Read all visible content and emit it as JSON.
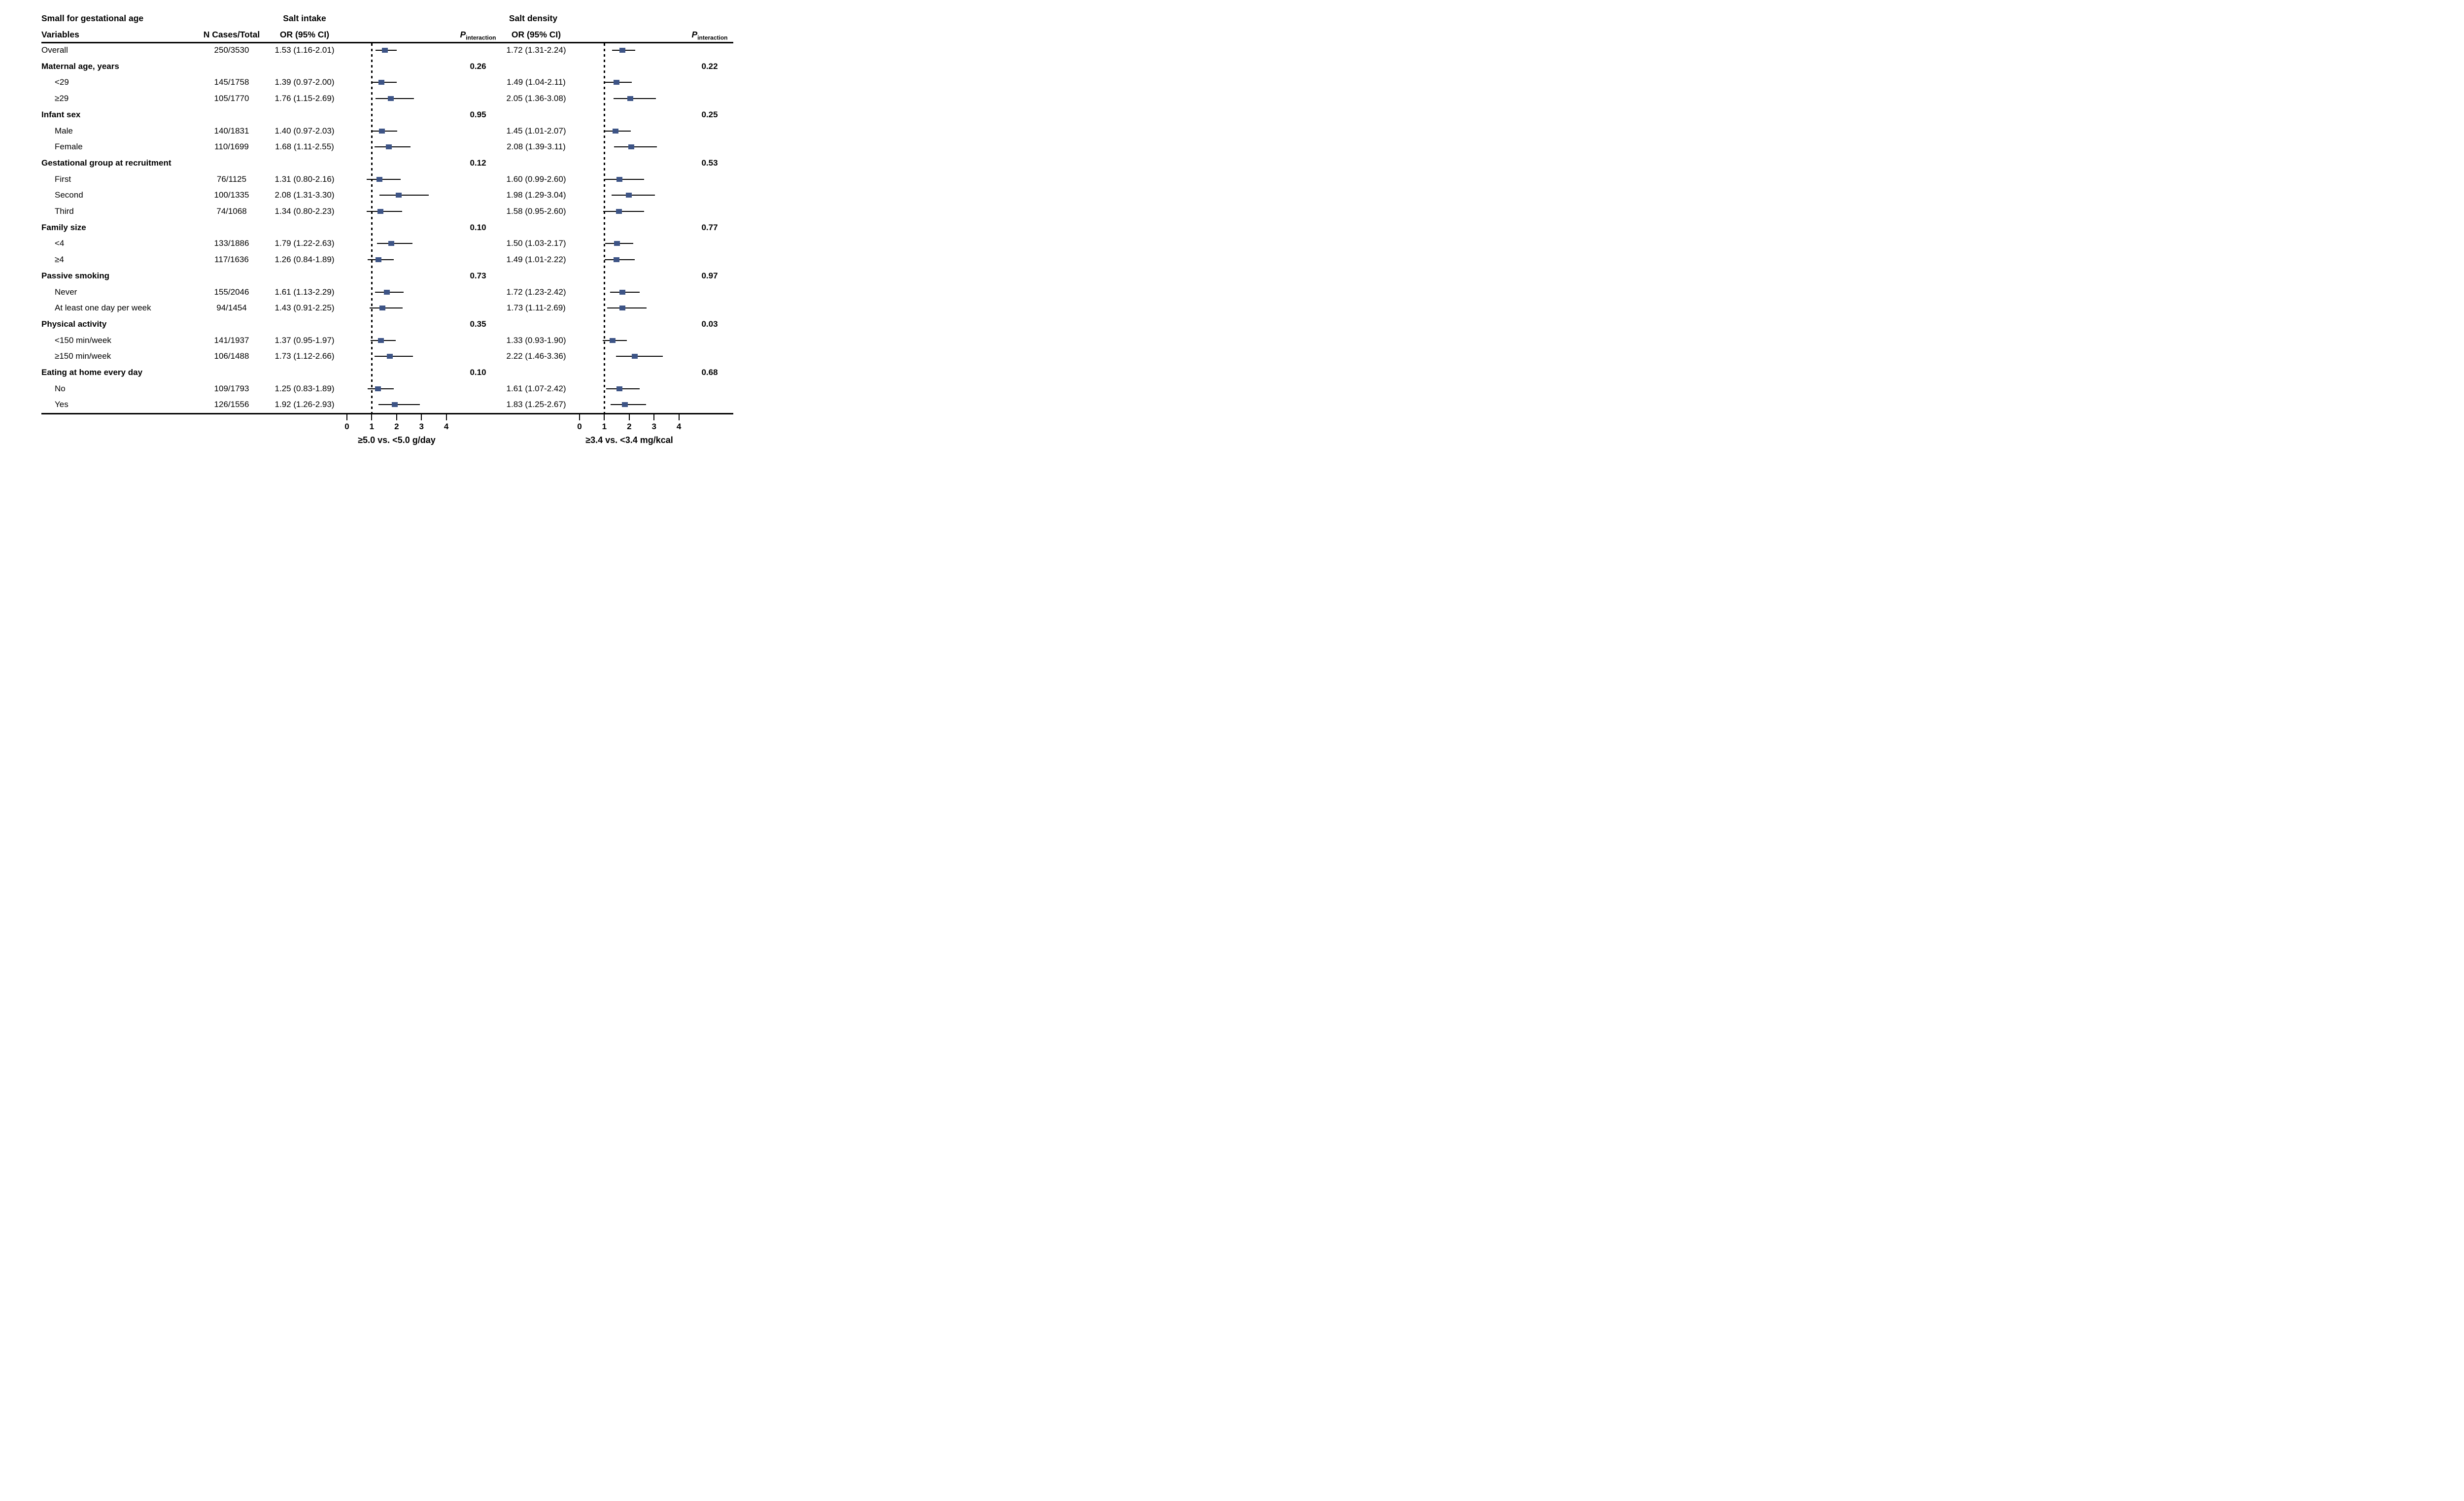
{
  "figure": {
    "title": "Small for gestational age",
    "col_headers": {
      "variables": "Variables",
      "n_cases": "N Cases/Total",
      "or_ci": "OR (95% CI)",
      "p_prefix": "P",
      "p_sub": "interaction"
    }
  },
  "chart_data": {
    "type": "forest",
    "title": "Small for gestational age",
    "or_axis": {
      "min": 0,
      "max": 4,
      "ticks": [
        0,
        1,
        2,
        3,
        4
      ],
      "reference_line": 1
    },
    "marker_color": "#3d5486",
    "legend_position": "none",
    "panels": [
      {
        "name": "Salt intake",
        "axis_caption": "≥5.0 vs. <5.0 g/day"
      },
      {
        "name": "Salt density",
        "axis_caption": "≥3.4 vs. <3.4 mg/kcal"
      }
    ],
    "rows": [
      {
        "type": "data",
        "indent": false,
        "label": "Overall",
        "n": "250/3530",
        "salt_intake": {
          "text": "1.53 (1.16-2.01)",
          "or": 1.53,
          "lo": 1.16,
          "hi": 2.01
        },
        "salt_density": {
          "text": "1.72 (1.31-2.24)",
          "or": 1.72,
          "lo": 1.31,
          "hi": 2.24
        }
      },
      {
        "type": "group",
        "indent": false,
        "label": "Maternal age, years",
        "p_intake": "0.26",
        "p_density": "0.22"
      },
      {
        "type": "data",
        "indent": true,
        "label": "<29",
        "n": "145/1758",
        "salt_intake": {
          "text": "1.39 (0.97-2.00)",
          "or": 1.39,
          "lo": 0.97,
          "hi": 2.0
        },
        "salt_density": {
          "text": "1.49 (1.04-2.11)",
          "or": 1.49,
          "lo": 1.04,
          "hi": 2.11
        }
      },
      {
        "type": "data",
        "indent": true,
        "label": "≥29",
        "n": "105/1770",
        "salt_intake": {
          "text": "1.76 (1.15-2.69)",
          "or": 1.76,
          "lo": 1.15,
          "hi": 2.69
        },
        "salt_density": {
          "text": "2.05 (1.36-3.08)",
          "or": 2.05,
          "lo": 1.36,
          "hi": 3.08
        }
      },
      {
        "type": "group",
        "indent": false,
        "label": "Infant sex",
        "p_intake": "0.95",
        "p_density": "0.25"
      },
      {
        "type": "data",
        "indent": true,
        "label": "Male",
        "n": "140/1831",
        "salt_intake": {
          "text": "1.40 (0.97-2.03)",
          "or": 1.4,
          "lo": 0.97,
          "hi": 2.03
        },
        "salt_density": {
          "text": "1.45 (1.01-2.07)",
          "or": 1.45,
          "lo": 1.01,
          "hi": 2.07
        }
      },
      {
        "type": "data",
        "indent": true,
        "label": "Female",
        "n": "110/1699",
        "salt_intake": {
          "text": "1.68 (1.11-2.55)",
          "or": 1.68,
          "lo": 1.11,
          "hi": 2.55
        },
        "salt_density": {
          "text": "2.08 (1.39-3.11)",
          "or": 2.08,
          "lo": 1.39,
          "hi": 3.11
        }
      },
      {
        "type": "group",
        "indent": false,
        "label": "Gestational group at recruitment",
        "p_intake": "0.12",
        "p_density": "0.53"
      },
      {
        "type": "data",
        "indent": true,
        "label": "First",
        "n": "76/1125",
        "salt_intake": {
          "text": "1.31 (0.80-2.16)",
          "or": 1.31,
          "lo": 0.8,
          "hi": 2.16
        },
        "salt_density": {
          "text": "1.60 (0.99-2.60)",
          "or": 1.6,
          "lo": 0.99,
          "hi": 2.6
        }
      },
      {
        "type": "data",
        "indent": true,
        "label": "Second",
        "n": "100/1335",
        "salt_intake": {
          "text": "2.08 (1.31-3.30)",
          "or": 2.08,
          "lo": 1.31,
          "hi": 3.3
        },
        "salt_density": {
          "text": "1.98 (1.29-3.04)",
          "or": 1.98,
          "lo": 1.29,
          "hi": 3.04
        }
      },
      {
        "type": "data",
        "indent": true,
        "label": "Third",
        "n": "74/1068",
        "salt_intake": {
          "text": "1.34 (0.80-2.23)",
          "or": 1.34,
          "lo": 0.8,
          "hi": 2.23
        },
        "salt_density": {
          "text": "1.58 (0.95-2.60)",
          "or": 1.58,
          "lo": 0.95,
          "hi": 2.6
        }
      },
      {
        "type": "group",
        "indent": false,
        "label": "Family size",
        "p_intake": "0.10",
        "p_density": "0.77"
      },
      {
        "type": "data",
        "indent": true,
        "label": "<4",
        "n": "133/1886",
        "salt_intake": {
          "text": "1.79 (1.22-2.63)",
          "or": 1.79,
          "lo": 1.22,
          "hi": 2.63
        },
        "salt_density": {
          "text": "1.50 (1.03-2.17)",
          "or": 1.5,
          "lo": 1.03,
          "hi": 2.17
        }
      },
      {
        "type": "data",
        "indent": true,
        "label": "≥4",
        "n": "117/1636",
        "salt_intake": {
          "text": "1.26 (0.84-1.89)",
          "or": 1.26,
          "lo": 0.84,
          "hi": 1.89
        },
        "salt_density": {
          "text": "1.49 (1.01-2.22)",
          "or": 1.49,
          "lo": 1.01,
          "hi": 2.22
        }
      },
      {
        "type": "group",
        "indent": false,
        "label": "Passive smoking",
        "p_intake": "0.73",
        "p_density": "0.97"
      },
      {
        "type": "data",
        "indent": true,
        "label": "Never",
        "n": "155/2046",
        "salt_intake": {
          "text": "1.61 (1.13-2.29)",
          "or": 1.61,
          "lo": 1.13,
          "hi": 2.29
        },
        "salt_density": {
          "text": "1.72 (1.23-2.42)",
          "or": 1.72,
          "lo": 1.23,
          "hi": 2.42
        }
      },
      {
        "type": "data",
        "indent": true,
        "label": "At least one day per week",
        "n": "94/1454",
        "salt_intake": {
          "text": "1.43 (0.91-2.25)",
          "or": 1.43,
          "lo": 0.91,
          "hi": 2.25
        },
        "salt_density": {
          "text": "1.73 (1.11-2.69)",
          "or": 1.73,
          "lo": 1.11,
          "hi": 2.69
        }
      },
      {
        "type": "group",
        "indent": false,
        "label": "Physical activity",
        "p_intake": "0.35",
        "p_density": "0.03"
      },
      {
        "type": "data",
        "indent": true,
        "label": "<150 min/week",
        "n": "141/1937",
        "salt_intake": {
          "text": "1.37 (0.95-1.97)",
          "or": 1.37,
          "lo": 0.95,
          "hi": 1.97
        },
        "salt_density": {
          "text": "1.33 (0.93-1.90)",
          "or": 1.33,
          "lo": 0.93,
          "hi": 1.9
        }
      },
      {
        "type": "data",
        "indent": true,
        "label": "≥150 min/week",
        "n": "106/1488",
        "salt_intake": {
          "text": "1.73 (1.12-2.66)",
          "or": 1.73,
          "lo": 1.12,
          "hi": 2.66
        },
        "salt_density": {
          "text": "2.22 (1.46-3.36)",
          "or": 2.22,
          "lo": 1.46,
          "hi": 3.36
        }
      },
      {
        "type": "group",
        "indent": false,
        "label": "Eating at home every day",
        "p_intake": "0.10",
        "p_density": "0.68"
      },
      {
        "type": "data",
        "indent": true,
        "label": "No",
        "n": "109/1793",
        "salt_intake": {
          "text": "1.25 (0.83-1.89)",
          "or": 1.25,
          "lo": 0.83,
          "hi": 1.89
        },
        "salt_density": {
          "text": "1.61 (1.07-2.42)",
          "or": 1.61,
          "lo": 1.07,
          "hi": 2.42
        }
      },
      {
        "type": "data",
        "indent": true,
        "label": "Yes",
        "n": "126/1556",
        "salt_intake": {
          "text": "1.92 (1.26-2.93)",
          "or": 1.92,
          "lo": 1.26,
          "hi": 2.93
        },
        "salt_density": {
          "text": "1.83 (1.25-2.67)",
          "or": 1.83,
          "lo": 1.25,
          "hi": 2.67
        }
      }
    ]
  }
}
